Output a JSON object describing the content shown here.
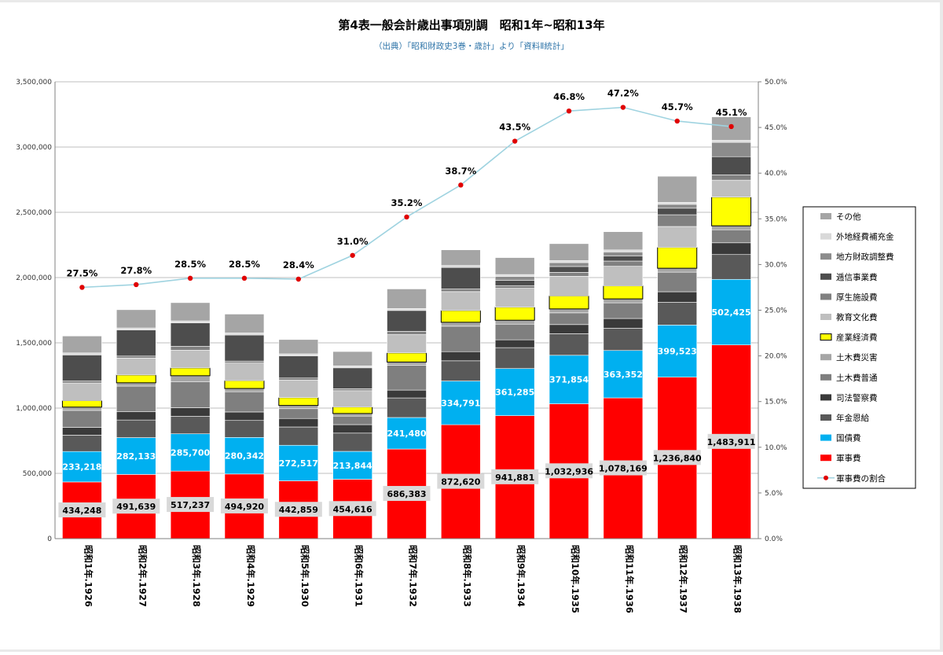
{
  "chart_data": {
    "type": "bar",
    "stacked": true,
    "title": "第4表一般会計歳出事項別調　昭和1年~昭和13年",
    "subtitle": "（出典）「昭和財政史3巻・歳計」より「資料Ⅱ統計」",
    "categories": [
      "昭和1年.1926",
      "昭和2年.1927",
      "昭和3年.1928",
      "昭和4年.1929",
      "昭和5年.1930",
      "昭和6年.1931",
      "昭和7年.1932",
      "昭和8年.1933",
      "昭和9年.1934",
      "昭和10年.1935",
      "昭和11年.1936",
      "昭和12年.1937",
      "昭和13年.1938"
    ],
    "ylim": [
      0,
      3500000
    ],
    "y_ticks": [
      "0",
      "500,000",
      "1,000,000",
      "1,500,000",
      "2,000,000",
      "2,500,000",
      "3,000,000",
      "3,500,000"
    ],
    "y2lim": [
      0,
      50
    ],
    "y2_ticks": [
      "0.0%",
      "5.0%",
      "10.0%",
      "15.0%",
      "20.0%",
      "25.0%",
      "30.0%",
      "35.0%",
      "40.0%",
      "45.0%",
      "50.0%"
    ],
    "grid": true,
    "legend_position": "right",
    "series": [
      {
        "name": "軍事費",
        "color": "#ff0000",
        "values": [
          434248,
          491639,
          517237,
          494920,
          442859,
          454616,
          686383,
          872620,
          941881,
          1032936,
          1078169,
          1236840,
          1483911
        ],
        "labels": [
          "434,248",
          "491,639",
          "517,237",
          "494,920",
          "442,859",
          "454,616",
          "686,383",
          "872,620",
          "941,881",
          "1,032,936",
          "1,078,169",
          "1,236,840",
          "1,483,911"
        ]
      },
      {
        "name": "国債費",
        "color": "#00b0f0",
        "values": [
          233218,
          282133,
          285700,
          280342,
          272517,
          213844,
          241480,
          334791,
          361285,
          371854,
          363352,
          399523,
          502425
        ],
        "labels": [
          "233,218",
          "282,133",
          "285,700",
          "280,342",
          "272,517",
          "213,844",
          "241,480",
          "334,791",
          "361,285",
          "371,854",
          "363,352",
          "399,523",
          "502,425"
        ]
      },
      {
        "name": "年金恩給",
        "color": "#595959",
        "values": [
          125000,
          135000,
          135000,
          130000,
          140000,
          140000,
          150000,
          155000,
          160000,
          165000,
          170000,
          175000,
          190000
        ]
      },
      {
        "name": "司法警察費",
        "color": "#3a3a3a",
        "values": [
          60000,
          65000,
          65000,
          65000,
          65000,
          65000,
          60000,
          70000,
          60000,
          70000,
          75000,
          80000,
          90000
        ]
      },
      {
        "name": "土木費普通",
        "color": "#7f7f7f",
        "values": [
          130000,
          195000,
          200000,
          155000,
          75000,
          65000,
          190000,
          195000,
          120000,
          90000,
          120000,
          150000,
          100000
        ]
      },
      {
        "name": "土木費災害",
        "color": "#a6a6a6",
        "values": [
          25000,
          25000,
          45000,
          25000,
          25000,
          20000,
          25000,
          30000,
          30000,
          30000,
          30000,
          30000,
          30000
        ]
      },
      {
        "name": "産業経済費",
        "color": "#ffff00",
        "values": [
          50000,
          60000,
          60000,
          60000,
          60000,
          50000,
          70000,
          90000,
          100000,
          100000,
          100000,
          160000,
          220000
        ]
      },
      {
        "name": "教育文化費",
        "color": "#bfbfbf",
        "values": [
          135000,
          130000,
          135000,
          135000,
          135000,
          125000,
          140000,
          145000,
          145000,
          150000,
          150000,
          160000,
          130000
        ]
      },
      {
        "name": "厚生施設費",
        "color": "#808080",
        "values": [
          15000,
          15000,
          30000,
          15000,
          15000,
          15000,
          25000,
          20000,
          20000,
          30000,
          40000,
          90000,
          40000
        ]
      },
      {
        "name": "逓信事業費",
        "color": "#4d4d4d",
        "values": [
          200000,
          200000,
          180000,
          200000,
          170000,
          160000,
          160000,
          165000,
          40000,
          45000,
          40000,
          50000,
          140000
        ]
      },
      {
        "name": "地方財政調整費",
        "color": "#8c8c8c",
        "values": [
          0,
          0,
          0,
          0,
          0,
          0,
          0,
          0,
          30000,
          30000,
          30000,
          30000,
          110000
        ]
      },
      {
        "name": "外地経費補充金",
        "color": "#d9d9d9",
        "values": [
          15000,
          15000,
          15000,
          15000,
          15000,
          15000,
          15000,
          15000,
          15000,
          15000,
          15000,
          15000,
          15000
        ]
      },
      {
        "name": "その他",
        "color": "#a5a5a5",
        "values": [
          130000,
          140000,
          140000,
          145000,
          110000,
          110000,
          150000,
          120000,
          130000,
          130000,
          140000,
          200000,
          180000
        ]
      }
    ],
    "ratio_series": {
      "name": "軍事費の割合",
      "color": "#9fd3e0",
      "marker_color": "#e00000",
      "values": [
        27.5,
        27.8,
        28.5,
        28.5,
        28.4,
        31.0,
        35.2,
        38.7,
        43.5,
        46.8,
        47.2,
        45.7,
        45.1
      ],
      "labels": [
        "27.5%",
        "27.8%",
        "28.5%",
        "28.5%",
        "28.4%",
        "31.0%",
        "35.2%",
        "38.7%",
        "43.5%",
        "46.8%",
        "47.2%",
        "45.7%",
        "45.1%"
      ]
    }
  }
}
